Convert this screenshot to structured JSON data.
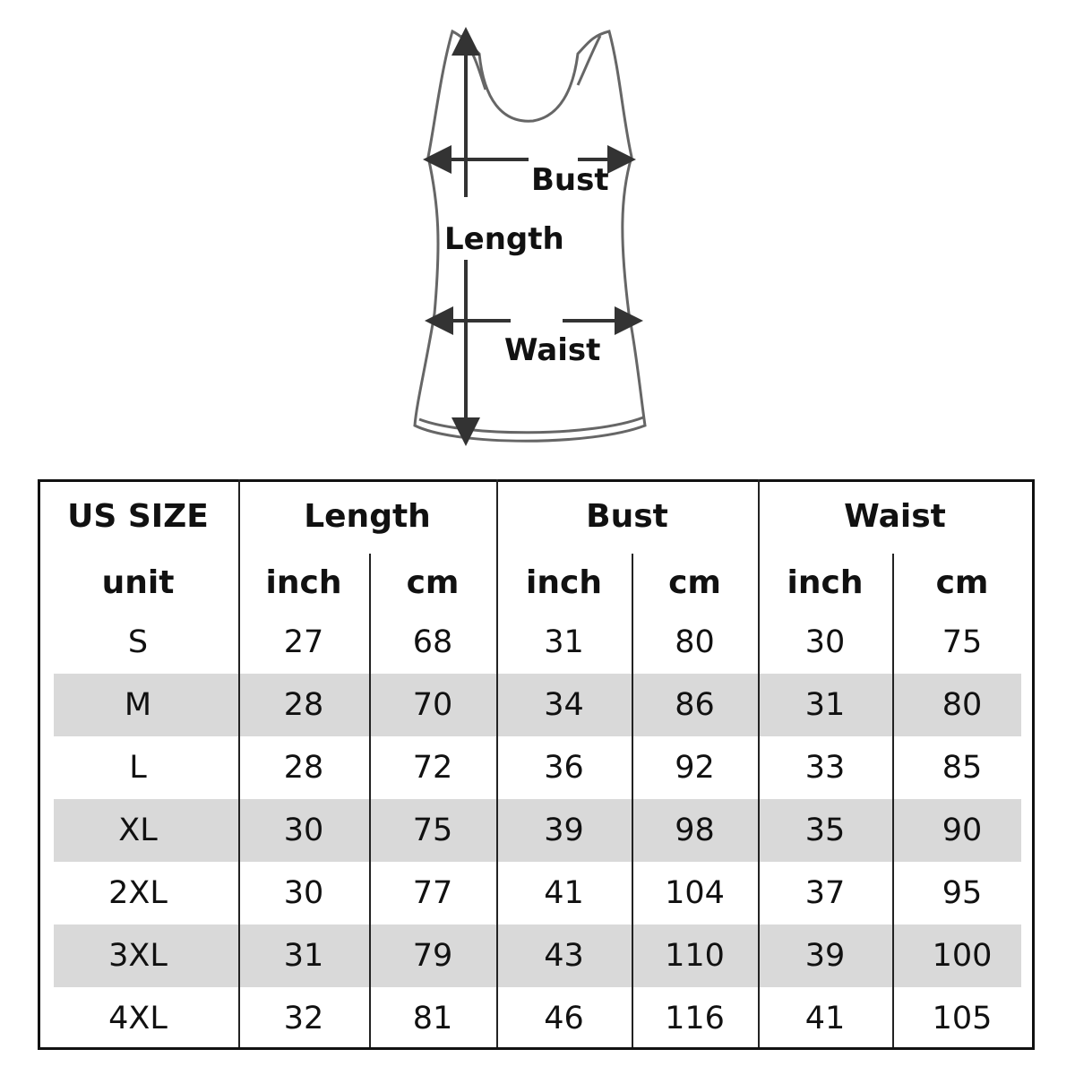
{
  "diagram": {
    "labels": {
      "bust": "Bust",
      "length": "Length",
      "waist": "Waist"
    }
  },
  "table": {
    "header": {
      "size": "US SIZE",
      "groups": [
        "Length",
        "Bust",
        "Waist"
      ]
    },
    "units": {
      "label": "unit",
      "values": [
        "inch",
        "cm",
        "inch",
        "cm",
        "inch",
        "cm"
      ]
    },
    "rows": [
      [
        "S",
        "27",
        "68",
        "31",
        "80",
        "30",
        "75"
      ],
      [
        "M",
        "28",
        "70",
        "34",
        "86",
        "31",
        "80"
      ],
      [
        "L",
        "28",
        "72",
        "36",
        "92",
        "33",
        "85"
      ],
      [
        "XL",
        "30",
        "75",
        "39",
        "98",
        "35",
        "90"
      ],
      [
        "2XL",
        "30",
        "77",
        "41",
        "104",
        "37",
        "95"
      ],
      [
        "3XL",
        "31",
        "79",
        "43",
        "110",
        "39",
        "100"
      ],
      [
        "4XL",
        "32",
        "81",
        "46",
        "116",
        "41",
        "105"
      ]
    ],
    "shade_color": "#d9d9d9"
  }
}
